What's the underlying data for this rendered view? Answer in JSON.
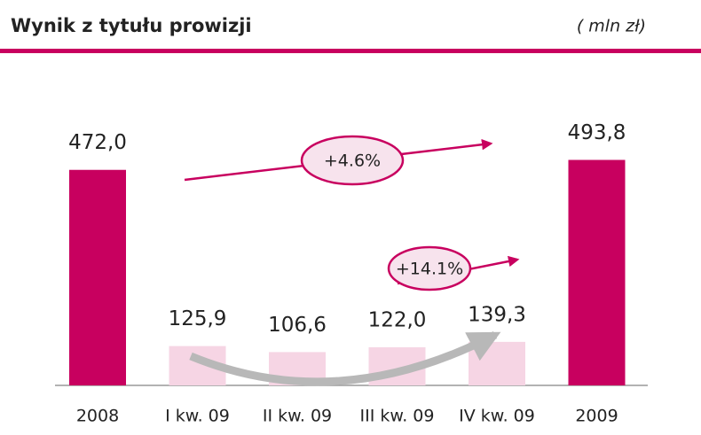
{
  "chart_data": {
    "type": "bar",
    "title": "Wynik z tytułu prowizji",
    "subtitle": "( mln zł)",
    "categories": [
      "2008",
      "I kw. 09",
      "II kw. 09",
      "III kw. 09",
      "IV kw. 09",
      "2009"
    ],
    "series": [
      {
        "color": "#c8005f",
        "values": [
          472.0,
          null,
          null,
          null,
          null,
          493.8
        ],
        "value_labels": [
          "472,0",
          null,
          null,
          null,
          null,
          "493,8"
        ]
      },
      {
        "color": "#f6d5e4",
        "axis": "y2",
        "values": [
          null,
          125.9,
          106.6,
          122.0,
          139.3,
          null
        ],
        "value_labels": [
          null,
          "125,9",
          "106,6",
          "122,0",
          "139,3",
          null
        ]
      }
    ],
    "ylim": [
      0,
      650
    ],
    "y2lim": [
      0,
      950
    ],
    "annotations": [
      "+4.6%",
      "+14.1%"
    ]
  }
}
